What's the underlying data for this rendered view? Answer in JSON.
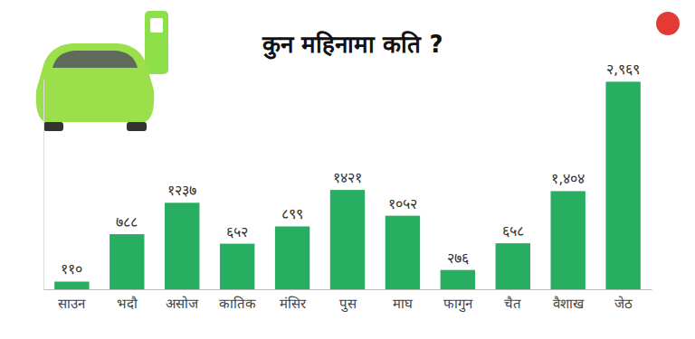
{
  "chart_data": {
    "type": "bar",
    "title": "कुन महिनामा कति ?",
    "categories": [
      "साउन",
      "भदौ",
      "असोज",
      "कातिक",
      "मंसिर",
      "पुस",
      "माघ",
      "फागुन",
      "चैत",
      "वैशाख",
      "जेठ"
    ],
    "values": [
      110,
      788,
      1237,
      652,
      899,
      1421,
      1052,
      276,
      658,
      1404,
      2969
    ],
    "value_labels": [
      "११०",
      "७८८",
      "१२३७",
      "६५२",
      "८९९",
      "१४२१",
      "१०५२",
      "२७६",
      "६५८",
      "१,४०४",
      "२,९६९"
    ],
    "color": "#27ae60",
    "ylim": [
      0,
      3000
    ],
    "data_labels": true,
    "tick_labels": "x",
    "grid": false
  }
}
